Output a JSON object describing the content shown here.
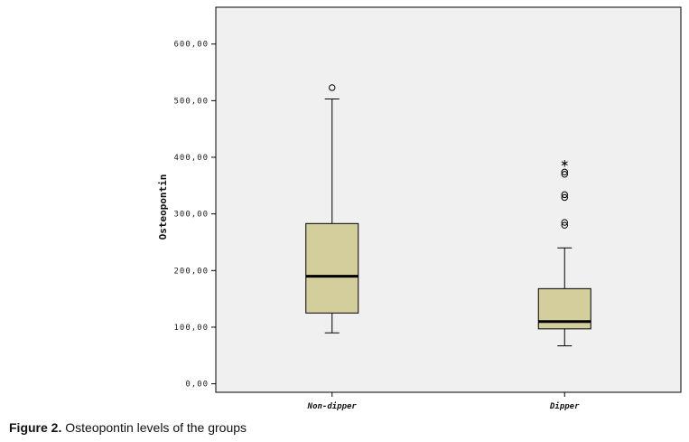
{
  "caption": {
    "label": "Figure 2.",
    "text": " Osteopontin levels of the groups"
  },
  "chart_data": {
    "type": "boxplot",
    "ylabel": "Osteopontin",
    "xlabel": "",
    "ylim": [
      -15,
      665
    ],
    "yticks": [
      0,
      100,
      200,
      300,
      400,
      500,
      600
    ],
    "ytick_labels": [
      "0,00",
      "100,00",
      "200,00",
      "300,00",
      "400,00",
      "500,00",
      "600,00"
    ],
    "categories": [
      "Non-dipper",
      "Dipper"
    ],
    "grid": false,
    "colors": {
      "plot_bg": "#f0f0f0",
      "box_fill": "#d3ce9c",
      "stroke": "#000000"
    },
    "boxes": [
      {
        "category": "Non-dipper",
        "whisker_low": 90,
        "q1": 125,
        "median": 190,
        "q3": 283,
        "whisker_high": 503,
        "outliers": [
          523
        ],
        "extremes": []
      },
      {
        "category": "Dipper",
        "whisker_low": 67,
        "q1": 97,
        "median": 110,
        "q3": 168,
        "whisker_high": 240,
        "outliers": [
          280,
          285,
          329,
          334,
          370,
          374
        ],
        "extremes": [
          393
        ]
      }
    ]
  }
}
